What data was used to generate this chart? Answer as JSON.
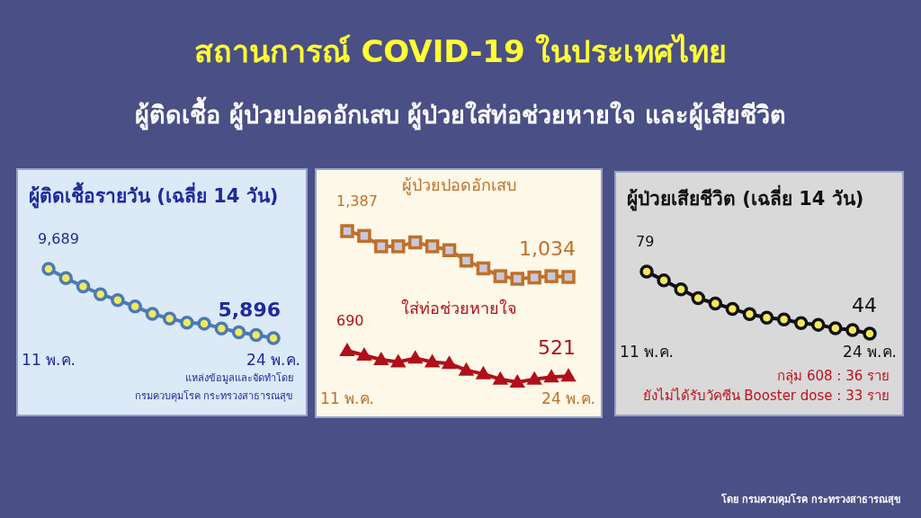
{
  "chart_data": [
    {
      "type": "other",
      "title": "สถานการณ์ COVID-19 ในประเทศไทย",
      "subtitle": "ผู้ติดเชื้อ ผู้ป่วยปอดอักเสบ ผู้ป่วยใส่ท่อช่วยหายใจ และผู้เสียชีวิต"
    },
    {
      "type": "line",
      "title": "ผู้ติดเชื้อรายวัน (เฉลี่ย 14 วัน)",
      "categories": [
        "11 พ.ค.",
        null,
        null,
        null,
        null,
        null,
        null,
        null,
        null,
        null,
        null,
        null,
        null,
        "24 พ.ค."
      ],
      "series": [
        {
          "color": "#4a7ab8",
          "marker": "circle",
          "values": [
            9689,
            9180,
            8730,
            8300,
            7980,
            7630,
            7230,
            6970,
            6750,
            6690,
            6430,
            6220,
            6070,
            5896
          ],
          "value_labels": [
            "9,689",
            null,
            null,
            null,
            null,
            null,
            null,
            null,
            null,
            null,
            null,
            null,
            null,
            "5,896"
          ]
        }
      ],
      "annotations": [
        "แหล่งข้อมูลและจัดทำโดย",
        "กรมควบคุมโรค กระทรวงสาธารณสุข"
      ]
    },
    {
      "type": "line",
      "title": "ผู้ป่วยปอดอักเสบ",
      "categories": [
        null,
        null,
        null,
        null,
        null,
        null,
        null,
        null,
        null,
        null,
        null,
        null,
        null,
        null
      ],
      "series": [
        {
          "color": "#c0702a",
          "marker": "square",
          "values": [
            1387,
            1350,
            1270,
            1270,
            1300,
            1270,
            1240,
            1160,
            1100,
            1040,
            1020,
            1030,
            1040,
            1034
          ],
          "value_labels": [
            "1,387",
            null,
            null,
            null,
            null,
            null,
            null,
            null,
            null,
            null,
            null,
            null,
            null,
            "1,034"
          ]
        }
      ]
    },
    {
      "type": "line",
      "title": "ใส่ท่อช่วยหายใจ",
      "categories": [
        "11 พ.ค.",
        null,
        null,
        null,
        null,
        null,
        null,
        null,
        null,
        null,
        null,
        null,
        null,
        "24 พ.ค."
      ],
      "series": [
        {
          "color": "#b0101a",
          "marker": "triangle",
          "values": [
            690,
            660,
            630,
            615,
            640,
            615,
            605,
            560,
            535,
            500,
            480,
            500,
            515,
            521
          ],
          "value_labels": [
            "690",
            null,
            null,
            null,
            null,
            null,
            null,
            null,
            null,
            null,
            null,
            null,
            null,
            "521"
          ]
        }
      ]
    },
    {
      "type": "line",
      "title": "ผู้ป่วยเสียชีวิต (เฉลี่ย 14 วัน)",
      "categories": [
        "11 พ.ค.",
        null,
        null,
        null,
        null,
        null,
        null,
        null,
        null,
        null,
        null,
        null,
        null,
        "24 พ.ค."
      ],
      "series": [
        {
          "color": "#111111",
          "marker": "circle",
          "values": [
            79,
            74,
            69,
            64,
            61,
            58,
            55,
            53,
            52,
            50,
            49,
            47,
            46,
            44
          ],
          "value_labels": [
            "79",
            null,
            null,
            null,
            null,
            null,
            null,
            null,
            null,
            null,
            null,
            null,
            null,
            "44"
          ]
        }
      ],
      "annotations": [
        "กลุ่ม 608 : 36 ราย",
        "ยังไม่ได้รับวัคซีน Booster dose : 33 ราย"
      ]
    },
    {
      "type": "other",
      "annotations": [
        "โดย กรมควบคุมโรค กระทรวงสาธารณสุข"
      ]
    }
  ]
}
